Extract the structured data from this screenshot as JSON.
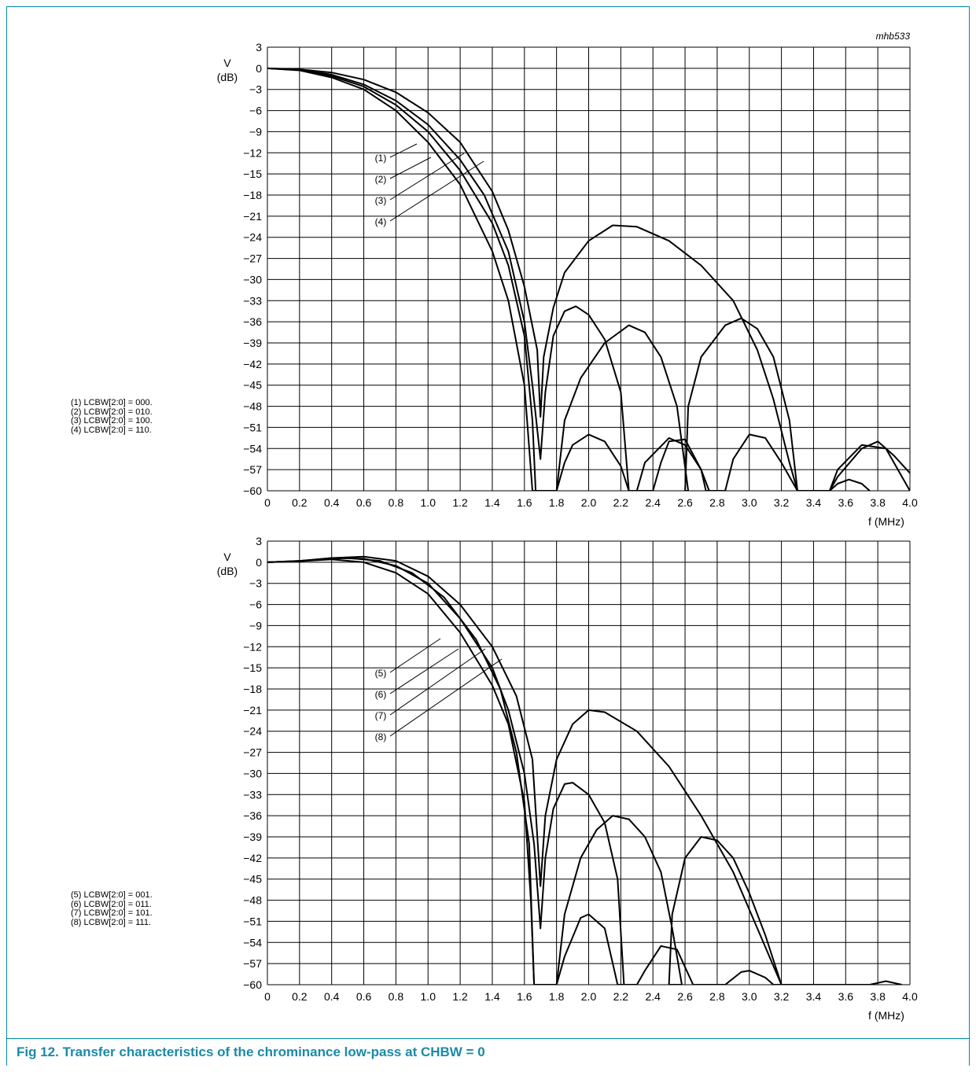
{
  "figure_code": "mhb533",
  "caption": "Fig 12.   Transfer characteristics of the chrominance low-pass at CHBW = 0",
  "colors": {
    "accent": "#1a8aa6",
    "curve": "#000000",
    "grid": "#000000"
  },
  "chart_data": [
    {
      "type": "line",
      "title": "",
      "ylabel": "V\n(dB)",
      "xlabel": "f (MHz)",
      "xlim": [
        0,
        4.0
      ],
      "ylim": [
        -60,
        3
      ],
      "grid": true,
      "x_ticks": [
        "0",
        "0.2",
        "0.4",
        "0.6",
        "0.8",
        "1.0",
        "1.2",
        "1.4",
        "1.6",
        "1.8",
        "2.0",
        "2.2",
        "2.4",
        "2.6",
        "2.8",
        "3.0",
        "3.2",
        "3.4",
        "3.6",
        "3.8",
        "4.0"
      ],
      "y_ticks": [
        "3",
        "0",
        "−3",
        "−6",
        "−9",
        "−12",
        "−15",
        "−18",
        "−21",
        "−24",
        "−27",
        "−30",
        "−33",
        "−36",
        "−39",
        "−42",
        "−45",
        "−48",
        "−51",
        "−54",
        "−57",
        "−60"
      ],
      "legend": [
        "(1) LCBW[2:0] = 000.",
        "(2) LCBW[2:0] = 010.",
        "(3) LCBW[2:0] = 100.",
        "(4) LCBW[2:0] = 110."
      ],
      "markers": [
        "(1)",
        "(2)",
        "(3)",
        "(4)"
      ],
      "series": [
        {
          "name": "(1)",
          "points": [
            [
              0,
              0
            ],
            [
              0.2,
              -0.3
            ],
            [
              0.4,
              -1.3
            ],
            [
              0.6,
              -3
            ],
            [
              0.8,
              -6
            ],
            [
              1.0,
              -10.5
            ],
            [
              1.2,
              -16.5
            ],
            [
              1.4,
              -26
            ],
            [
              1.5,
              -33
            ],
            [
              1.6,
              -45
            ],
            [
              1.65,
              -60
            ],
            [
              1.8,
              -60
            ],
            [
              1.85,
              -56
            ],
            [
              1.9,
              -53.5
            ],
            [
              2.0,
              -52
            ],
            [
              2.1,
              -53
            ],
            [
              2.2,
              -56.5
            ],
            [
              2.25,
              -60
            ],
            [
              2.3,
              -60
            ],
            [
              2.35,
              -56
            ],
            [
              2.5,
              -52.5
            ],
            [
              2.6,
              -53.5
            ],
            [
              2.7,
              -57
            ],
            [
              2.73,
              -60
            ],
            [
              2.85,
              -60
            ],
            [
              2.9,
              -55.5
            ],
            [
              3.0,
              -52
            ],
            [
              3.1,
              -52.5
            ],
            [
              3.2,
              -56
            ],
            [
              3.3,
              -60
            ],
            [
              3.5,
              -60
            ],
            [
              3.55,
              -59
            ],
            [
              3.62,
              -58.4
            ],
            [
              3.7,
              -59
            ],
            [
              3.75,
              -60
            ]
          ]
        },
        {
          "name": "(2)",
          "points": [
            [
              0,
              0
            ],
            [
              0.2,
              -0.2
            ],
            [
              0.4,
              -0.9
            ],
            [
              0.6,
              -2.3
            ],
            [
              0.8,
              -4.6
            ],
            [
              1.0,
              -8
            ],
            [
              1.2,
              -13
            ],
            [
              1.35,
              -18
            ],
            [
              1.5,
              -26
            ],
            [
              1.6,
              -36
            ],
            [
              1.65,
              -45
            ],
            [
              1.7,
              -55.5
            ],
            [
              1.73,
              -46
            ],
            [
              1.78,
              -38
            ],
            [
              1.85,
              -34.5
            ],
            [
              1.92,
              -33.8
            ],
            [
              2.0,
              -35
            ],
            [
              2.1,
              -38.5
            ],
            [
              2.2,
              -46
            ],
            [
              2.25,
              -60
            ],
            [
              2.4,
              -60
            ],
            [
              2.45,
              -56
            ],
            [
              2.5,
              -53
            ],
            [
              2.6,
              -52.7
            ],
            [
              2.7,
              -57
            ],
            [
              2.75,
              -60
            ]
          ]
        },
        {
          "name": "(3)",
          "points": [
            [
              0,
              0
            ],
            [
              0.2,
              -0.15
            ],
            [
              0.4,
              -0.6
            ],
            [
              0.6,
              -1.6
            ],
            [
              0.8,
              -3.4
            ],
            [
              1.0,
              -6.3
            ],
            [
              1.2,
              -10.5
            ],
            [
              1.4,
              -17.5
            ],
            [
              1.5,
              -23
            ],
            [
              1.6,
              -31
            ],
            [
              1.68,
              -40
            ],
            [
              1.7,
              -49.5
            ],
            [
              1.72,
              -41
            ],
            [
              1.78,
              -34
            ],
            [
              1.85,
              -29
            ],
            [
              2.0,
              -24.5
            ],
            [
              2.15,
              -22.3
            ],
            [
              2.3,
              -22.5
            ],
            [
              2.5,
              -24.5
            ],
            [
              2.7,
              -28
            ],
            [
              2.9,
              -33
            ],
            [
              3.05,
              -40
            ],
            [
              3.15,
              -47
            ],
            [
              3.25,
              -56
            ],
            [
              3.3,
              -60
            ],
            [
              3.5,
              -60
            ],
            [
              3.55,
              -58
            ],
            [
              3.7,
              -54
            ],
            [
              3.8,
              -53
            ],
            [
              3.9,
              -55
            ],
            [
              4.0,
              -57.5
            ]
          ]
        },
        {
          "name": "(4)",
          "points": [
            [
              0,
              0
            ],
            [
              0.2,
              -0.25
            ],
            [
              0.4,
              -1.1
            ],
            [
              0.6,
              -2.6
            ],
            [
              0.8,
              -5.2
            ],
            [
              1.0,
              -9
            ],
            [
              1.2,
              -14.5
            ],
            [
              1.4,
              -22
            ],
            [
              1.5,
              -28
            ],
            [
              1.6,
              -38
            ],
            [
              1.65,
              -50
            ],
            [
              1.67,
              -60
            ],
            [
              1.8,
              -60
            ],
            [
              1.85,
              -50
            ],
            [
              1.95,
              -44
            ],
            [
              2.1,
              -39
            ],
            [
              2.25,
              -36.5
            ],
            [
              2.35,
              -37.5
            ],
            [
              2.45,
              -41
            ],
            [
              2.55,
              -48
            ],
            [
              2.62,
              -60
            ],
            [
              2.6,
              -60
            ],
            [
              2.62,
              -48
            ],
            [
              2.7,
              -41
            ],
            [
              2.85,
              -36.5
            ],
            [
              2.95,
              -35.5
            ],
            [
              3.05,
              -37
            ],
            [
              3.15,
              -41
            ],
            [
              3.25,
              -50
            ],
            [
              3.3,
              -60
            ],
            [
              3.5,
              -60
            ],
            [
              3.55,
              -57
            ],
            [
              3.7,
              -53.5
            ],
            [
              3.85,
              -54
            ],
            [
              4.0,
              -60
            ]
          ]
        }
      ]
    },
    {
      "type": "line",
      "title": "",
      "ylabel": "V\n(dB)",
      "xlabel": "f (MHz)",
      "xlim": [
        0,
        4.0
      ],
      "ylim": [
        -60,
        3
      ],
      "grid": true,
      "x_ticks": [
        "0",
        "0.2",
        "0.4",
        "0.6",
        "0.8",
        "1.0",
        "1.2",
        "1.4",
        "1.6",
        "1.8",
        "2.0",
        "2.2",
        "2.4",
        "2.6",
        "2.8",
        "3.0",
        "3.2",
        "3.4",
        "3.6",
        "3.8",
        "4.0"
      ],
      "y_ticks": [
        "3",
        "0",
        "−3",
        "−6",
        "−9",
        "−12",
        "−15",
        "−18",
        "−21",
        "−24",
        "−27",
        "−30",
        "−33",
        "−36",
        "−39",
        "−42",
        "−45",
        "−48",
        "−51",
        "−54",
        "−57",
        "−60"
      ],
      "legend": [
        "(5) LCBW[2:0] = 001.",
        "(6) LCBW[2:0] = 011.",
        "(7) LCBW[2:0] = 101.",
        "(8) LCBW[2:0] = 111."
      ],
      "markers": [
        "(5)",
        "(6)",
        "(7)",
        "(8)"
      ],
      "series": [
        {
          "name": "(5)",
          "points": [
            [
              0,
              0
            ],
            [
              0.2,
              0.2
            ],
            [
              0.4,
              0.5
            ],
            [
              0.5,
              0.6
            ],
            [
              0.7,
              0.2
            ],
            [
              0.9,
              -1.5
            ],
            [
              1.1,
              -5
            ],
            [
              1.3,
              -11
            ],
            [
              1.45,
              -18
            ],
            [
              1.55,
              -27
            ],
            [
              1.63,
              -40
            ],
            [
              1.66,
              -60
            ],
            [
              1.8,
              -60
            ],
            [
              1.85,
              -56
            ],
            [
              1.95,
              -50.5
            ],
            [
              2.0,
              -50
            ],
            [
              2.1,
              -52
            ],
            [
              2.18,
              -60
            ],
            [
              2.3,
              -60
            ],
            [
              2.35,
              -58
            ],
            [
              2.45,
              -54.5
            ],
            [
              2.55,
              -55
            ],
            [
              2.65,
              -60
            ],
            [
              2.85,
              -60
            ],
            [
              2.95,
              -58.2
            ],
            [
              3.0,
              -58
            ],
            [
              3.1,
              -59
            ],
            [
              3.15,
              -60
            ],
            [
              3.75,
              -60
            ],
            [
              3.85,
              -59.5
            ],
            [
              3.95,
              -60
            ]
          ]
        },
        {
          "name": "(6)",
          "points": [
            [
              0,
              0
            ],
            [
              0.2,
              0.15
            ],
            [
              0.4,
              0.6
            ],
            [
              0.6,
              0.5
            ],
            [
              0.8,
              -0.5
            ],
            [
              1.0,
              -3
            ],
            [
              1.2,
              -8
            ],
            [
              1.4,
              -15
            ],
            [
              1.5,
              -21
            ],
            [
              1.6,
              -30
            ],
            [
              1.66,
              -40
            ],
            [
              1.7,
              -52
            ],
            [
              1.73,
              -42
            ],
            [
              1.78,
              -35
            ],
            [
              1.85,
              -31.5
            ],
            [
              1.9,
              -31.3
            ],
            [
              2.0,
              -33
            ],
            [
              2.1,
              -37
            ],
            [
              2.18,
              -45
            ],
            [
              2.22,
              -60
            ]
          ]
        },
        {
          "name": "(7)",
          "points": [
            [
              0,
              0
            ],
            [
              0.2,
              0.2
            ],
            [
              0.4,
              0.6
            ],
            [
              0.6,
              0.8
            ],
            [
              0.8,
              0.2
            ],
            [
              1.0,
              -2
            ],
            [
              1.2,
              -6
            ],
            [
              1.4,
              -12
            ],
            [
              1.55,
              -19
            ],
            [
              1.65,
              -28
            ],
            [
              1.7,
              -46
            ],
            [
              1.73,
              -36
            ],
            [
              1.8,
              -28
            ],
            [
              1.9,
              -23
            ],
            [
              2.0,
              -21
            ],
            [
              2.1,
              -21.3
            ],
            [
              2.3,
              -24
            ],
            [
              2.5,
              -29
            ],
            [
              2.7,
              -36
            ],
            [
              2.9,
              -44
            ],
            [
              3.05,
              -52
            ],
            [
              3.2,
              -60
            ]
          ]
        },
        {
          "name": "(8)",
          "points": [
            [
              0,
              0
            ],
            [
              0.2,
              0.15
            ],
            [
              0.4,
              0.4
            ],
            [
              0.6,
              0
            ],
            [
              0.8,
              -1.5
            ],
            [
              1.0,
              -4.5
            ],
            [
              1.2,
              -10
            ],
            [
              1.4,
              -17.5
            ],
            [
              1.5,
              -23
            ],
            [
              1.6,
              -34
            ],
            [
              1.64,
              -48
            ],
            [
              1.66,
              -60
            ],
            [
              1.8,
              -60
            ],
            [
              1.85,
              -50
            ],
            [
              1.95,
              -42
            ],
            [
              2.05,
              -38
            ],
            [
              2.15,
              -36
            ],
            [
              2.25,
              -36.5
            ],
            [
              2.35,
              -39
            ],
            [
              2.45,
              -44
            ],
            [
              2.52,
              -52
            ],
            [
              2.58,
              -60
            ],
            [
              2.5,
              -60
            ],
            [
              2.52,
              -50
            ],
            [
              2.6,
              -42
            ],
            [
              2.7,
              -39
            ],
            [
              2.8,
              -39.5
            ],
            [
              2.9,
              -42
            ],
            [
              3.0,
              -47
            ],
            [
              3.1,
              -53
            ],
            [
              3.2,
              -60
            ]
          ]
        }
      ]
    }
  ]
}
